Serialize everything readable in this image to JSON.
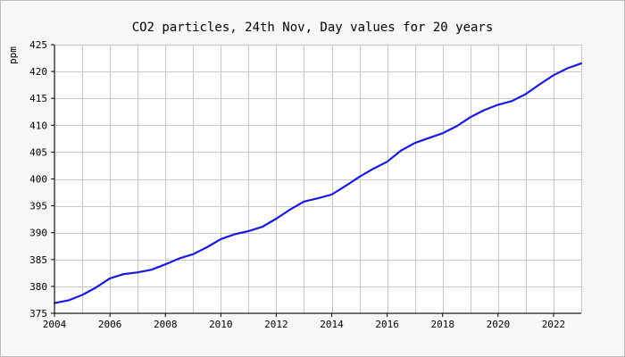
{
  "chart_data": {
    "type": "line",
    "title": "CO2 particles, 24th Nov, Day values for 20 years",
    "xlabel": "",
    "ylabel": "ppm",
    "xlim": [
      2004,
      2023
    ],
    "ylim": [
      375,
      425
    ],
    "x_ticks": [
      2004,
      2006,
      2008,
      2010,
      2012,
      2014,
      2016,
      2018,
      2020,
      2022
    ],
    "y_ticks": [
      375,
      380,
      385,
      390,
      395,
      400,
      405,
      410,
      415,
      420,
      425
    ],
    "grid": true,
    "colors": {
      "line": "#1a1adb",
      "grid": "#c8c8c8",
      "plot_bg": "#ffffff",
      "axis": "#000000"
    },
    "series": [
      {
        "x": [
          2004.0,
          2004.5,
          2005.0,
          2005.5,
          2006.0,
          2006.5,
          2007.0,
          2007.5,
          2008.0,
          2008.5,
          2009.0,
          2009.5,
          2010.0,
          2010.5,
          2011.0,
          2011.5,
          2012.0,
          2012.5,
          2013.0,
          2013.5,
          2014.0,
          2014.5,
          2015.0,
          2015.5,
          2016.0,
          2016.5,
          2017.0,
          2017.5,
          2018.0,
          2018.5,
          2019.0,
          2019.5,
          2020.0,
          2020.5,
          2021.0,
          2021.5,
          2022.0,
          2022.5,
          2023.0
        ],
        "values": [
          376.9,
          377.4,
          378.4,
          379.8,
          381.5,
          382.3,
          382.6,
          383.1,
          384.1,
          385.2,
          386.0,
          387.3,
          388.8,
          389.7,
          390.3,
          391.1,
          392.6,
          394.3,
          395.8,
          396.4,
          397.1,
          398.7,
          400.4,
          401.9,
          403.2,
          405.3,
          406.7,
          407.6,
          408.5,
          409.8,
          411.5,
          412.8,
          413.8,
          414.5,
          415.8,
          417.6,
          419.3,
          420.6,
          421.5
        ]
      }
    ]
  }
}
